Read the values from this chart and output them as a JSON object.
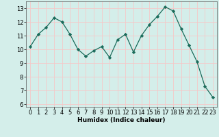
{
  "x": [
    0,
    1,
    2,
    3,
    4,
    5,
    6,
    7,
    8,
    9,
    10,
    11,
    12,
    13,
    14,
    15,
    16,
    17,
    18,
    19,
    20,
    21,
    22,
    23
  ],
  "y": [
    10.2,
    11.1,
    11.6,
    12.3,
    12.0,
    11.1,
    10.0,
    9.5,
    9.9,
    10.2,
    9.4,
    10.7,
    11.1,
    9.8,
    11.0,
    11.8,
    12.4,
    13.1,
    12.8,
    11.5,
    10.3,
    9.1,
    7.3,
    6.5
  ],
  "line_color": "#1a6b5a",
  "marker": "D",
  "marker_size": 2.2,
  "bg_color": "#d4eeea",
  "grid_color": "#f5c8c8",
  "xlabel": "Humidex (Indice chaleur)",
  "xlim": [
    -0.5,
    23.5
  ],
  "ylim": [
    5.8,
    13.5
  ],
  "yticks": [
    6,
    7,
    8,
    9,
    10,
    11,
    12,
    13
  ],
  "xticks": [
    0,
    1,
    2,
    3,
    4,
    5,
    6,
    7,
    8,
    9,
    10,
    11,
    12,
    13,
    14,
    15,
    16,
    17,
    18,
    19,
    20,
    21,
    22,
    23
  ],
  "xlabel_fontsize": 6.5,
  "tick_fontsize": 6.0
}
